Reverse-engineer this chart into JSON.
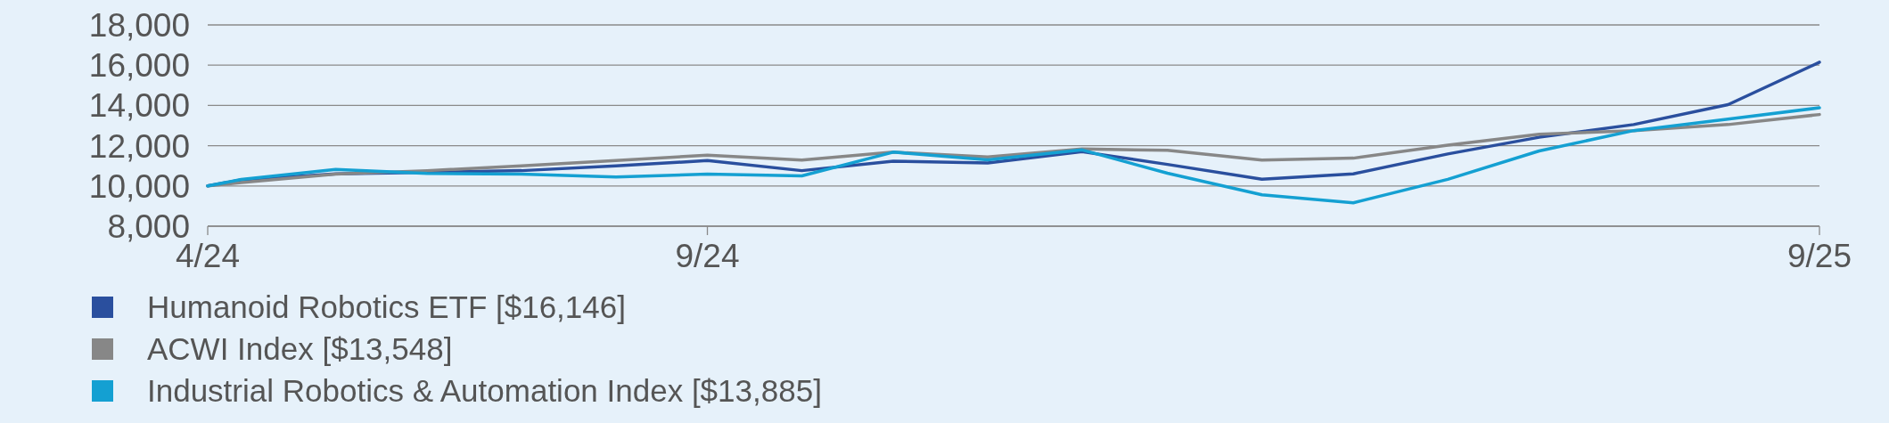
{
  "chart_data": {
    "type": "line",
    "x": [
      "2024-04-19",
      "2024-04-30",
      "2024-05-31",
      "2024-06-30",
      "2024-07-31",
      "2024-08-31",
      "2024-09-30",
      "2024-10-31",
      "2024-11-30",
      "2024-12-31",
      "2025-01-31",
      "2025-02-28",
      "2025-03-31",
      "2025-04-30",
      "2025-05-31",
      "2025-06-30",
      "2025-07-31",
      "2025-08-31",
      "2025-09-30"
    ],
    "series": [
      {
        "name": "Humanoid Robotics ETF [$16,146]",
        "color": "#2a4f9e",
        "values": [
          10000,
          10300,
          10600,
          10680,
          10760,
          11000,
          11260,
          10760,
          11230,
          11140,
          11700,
          11070,
          10330,
          10600,
          11590,
          12420,
          13050,
          14040,
          16146
        ]
      },
      {
        "name": "ACWI Index [$13,548]",
        "color": "#878787",
        "values": [
          10000,
          10170,
          10590,
          10760,
          11000,
          11260,
          11530,
          11290,
          11680,
          11440,
          11840,
          11770,
          11290,
          11380,
          12030,
          12570,
          12750,
          13050,
          13548
        ]
      },
      {
        "name": "Industrial Robotics & Automation Index [$13,885]",
        "color": "#14a0d2",
        "values": [
          10000,
          10320,
          10820,
          10620,
          10590,
          10440,
          10590,
          10500,
          11680,
          11300,
          11790,
          10630,
          9560,
          9160,
          10330,
          11740,
          12750,
          13320,
          13885
        ]
      }
    ],
    "xlim": [
      "2024-04-19",
      "2025-09-30"
    ],
    "xticks": [
      {
        "value": "2024-04-19",
        "label": "4/24"
      },
      {
        "value": "2024-09-30",
        "label": "9/24"
      },
      {
        "value": "2025-09-30",
        "label": "9/25"
      }
    ],
    "ylim": [
      8000,
      18000
    ],
    "yticks": [
      {
        "value": 8000,
        "label": "8,000"
      },
      {
        "value": 10000,
        "label": "10,000"
      },
      {
        "value": 12000,
        "label": "12,000"
      },
      {
        "value": 14000,
        "label": "14,000"
      },
      {
        "value": 16000,
        "label": "16,000"
      },
      {
        "value": 18000,
        "label": "18,000"
      }
    ],
    "grid": "y",
    "legend": "bottom",
    "marker": "none",
    "line_style": "solid"
  }
}
